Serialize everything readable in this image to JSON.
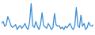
{
  "chart_data": {
    "type": "line",
    "color": "#3b8fd4",
    "tick_labels": false,
    "grid": false,
    "x": [
      1,
      2,
      3,
      4,
      5,
      6,
      7,
      8,
      9,
      10,
      11,
      12,
      13,
      14,
      15,
      16,
      17,
      18,
      19,
      20,
      21,
      22,
      23,
      24,
      25,
      26,
      27,
      28,
      29,
      30,
      31,
      32,
      33,
      34,
      35,
      36,
      37,
      38,
      39,
      40,
      41,
      42,
      43,
      44,
      45,
      46,
      47,
      48,
      49,
      50,
      51,
      52,
      53,
      54,
      55,
      56,
      57,
      58,
      59,
      60
    ],
    "values": [
      45,
      50,
      38,
      42,
      62,
      52,
      40,
      35,
      38,
      42,
      30,
      36,
      40,
      33,
      38,
      45,
      35,
      30,
      48,
      95,
      40,
      35,
      50,
      38,
      30,
      42,
      72,
      40,
      36,
      33,
      45,
      38,
      30,
      35,
      70,
      42,
      38,
      40,
      32,
      36,
      30,
      38,
      34,
      40,
      45,
      35,
      30,
      38,
      85,
      40,
      35,
      66,
      38,
      45,
      30,
      35,
      48,
      40,
      38,
      42
    ],
    "xlim": [
      1,
      60
    ],
    "ylim": [
      20,
      100
    ]
  }
}
